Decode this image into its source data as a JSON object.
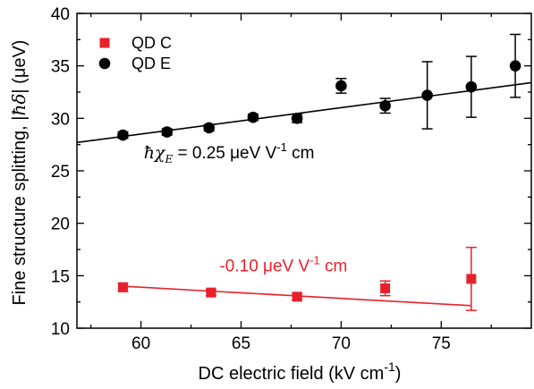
{
  "chart_data": {
    "type": "scatter",
    "xlabel": "DC electric field  (kV cm",
    "xlabel_sup": "-1",
    "xlabel_tail": ")",
    "ylabel": "Fine structure splitting, |",
    "ylabel_math": "ħδ",
    "ylabel_tail": "| (μeV)",
    "xlim": [
      56.8,
      79.5
    ],
    "ylim": [
      10,
      40
    ],
    "xticks": [
      60,
      65,
      70,
      75
    ],
    "yticks": [
      10,
      15,
      20,
      25,
      30,
      35,
      40
    ],
    "legend_placement": "top-left",
    "grid": false,
    "series": [
      {
        "name": "QD C",
        "marker": "square",
        "color": "#e8202a",
        "points": [
          {
            "x": 59.1,
            "y": 13.9,
            "err": 0.4
          },
          {
            "x": 63.5,
            "y": 13.4,
            "err": 0.3
          },
          {
            "x": 67.8,
            "y": 13.0,
            "err": 0.3
          },
          {
            "x": 72.2,
            "y": 13.8,
            "err": 0.7
          },
          {
            "x": 76.5,
            "y": 14.7,
            "err": 3.0
          }
        ],
        "fit": {
          "x": [
            59.1,
            76.5
          ],
          "y": [
            14.0,
            12.15
          ]
        }
      },
      {
        "name": "QD E",
        "marker": "circle",
        "color": "#000000",
        "points": [
          {
            "x": 59.1,
            "y": 28.4,
            "err": 0.3
          },
          {
            "x": 61.3,
            "y": 28.7,
            "err": 0.3
          },
          {
            "x": 63.4,
            "y": 29.1,
            "err": 0.3
          },
          {
            "x": 65.6,
            "y": 30.1,
            "err": 0.3
          },
          {
            "x": 67.8,
            "y": 30.0,
            "err": 0.4
          },
          {
            "x": 70.0,
            "y": 33.1,
            "err": 0.7
          },
          {
            "x": 72.2,
            "y": 31.2,
            "err": 0.7
          },
          {
            "x": 74.3,
            "y": 32.2,
            "err": 3.2
          },
          {
            "x": 76.5,
            "y": 33.0,
            "err": 2.9
          },
          {
            "x": 78.7,
            "y": 35.0,
            "err": 3.0
          }
        ],
        "fit": {
          "x": [
            56.8,
            79.5
          ],
          "y": [
            27.7,
            33.4
          ]
        }
      }
    ],
    "annotations": [
      {
        "id": "e",
        "math": "ħχ",
        "sub": "E",
        "text": " = 0.25 μeV V",
        "sup": "-1",
        "tail": " cm",
        "color": "#000000",
        "x": 65.5,
        "y": 26.2
      },
      {
        "id": "c",
        "text": "-0.10 μeV V",
        "sup": "-1",
        "tail": " cm",
        "color": "#e8202a",
        "x": 67.5,
        "y": 15.4
      }
    ]
  }
}
